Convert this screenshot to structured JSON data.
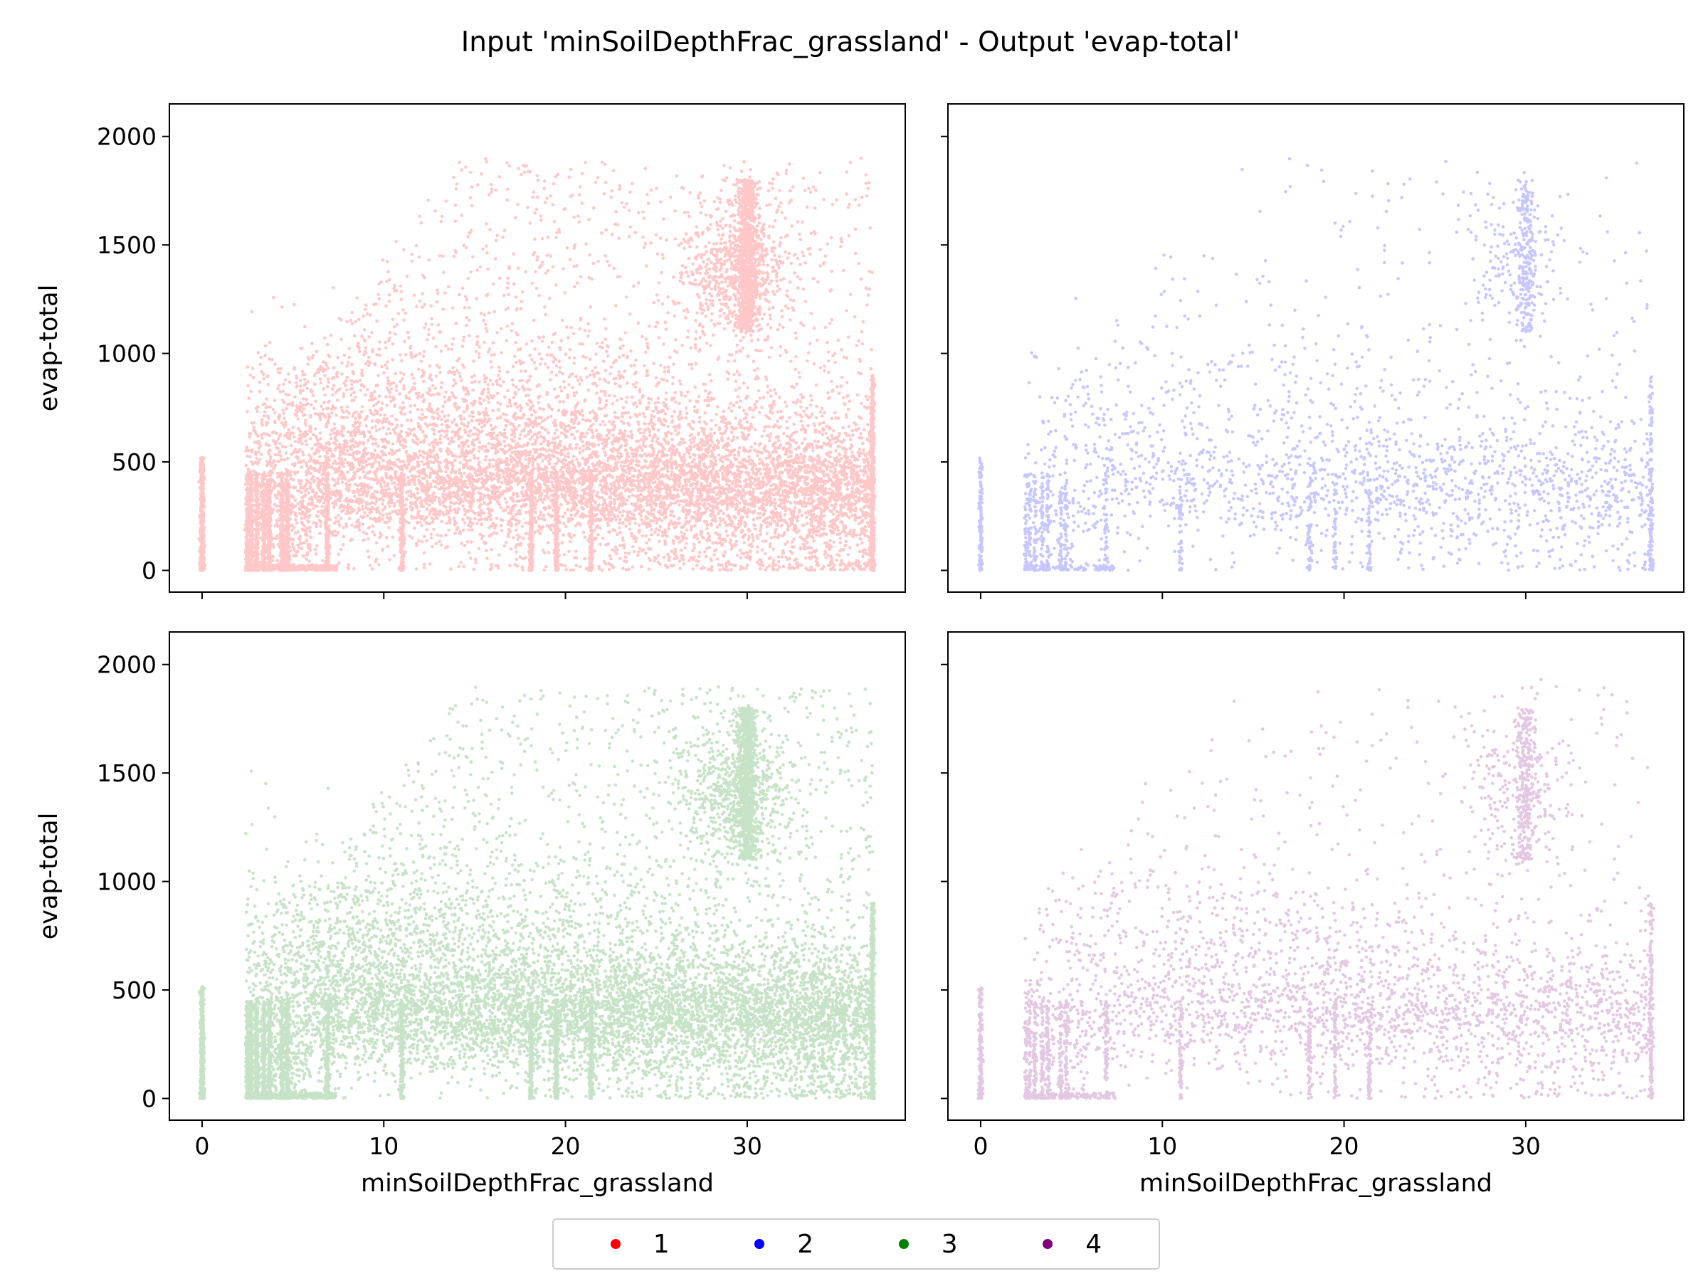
{
  "figure": {
    "title": "Input 'minSoilDepthFrac_grassland' - Output 'evap-total'"
  },
  "legend": {
    "items": [
      {
        "label": "1",
        "color": "#ff0000"
      },
      {
        "label": "2",
        "color": "#0000ff"
      },
      {
        "label": "3",
        "color": "#008000"
      },
      {
        "label": "4",
        "color": "#800080"
      }
    ]
  },
  "chart_data": [
    {
      "type": "scatter",
      "series_label": "1",
      "color": "#ff0000",
      "density": 1.0,
      "xlabel": "",
      "ylabel": "evap-total",
      "xlim": [
        -1.8,
        38.7
      ],
      "ylim": [
        -100,
        2150
      ],
      "xticks": [
        0,
        10,
        20,
        30
      ],
      "yticks": [
        0,
        500,
        1000,
        1500,
        2000
      ],
      "show_xticklabels": false,
      "show_yticklabels": true
    },
    {
      "type": "scatter",
      "series_label": "2",
      "color": "#0000ff",
      "density": 0.22,
      "xlabel": "",
      "ylabel": "",
      "xlim": [
        -1.8,
        38.7
      ],
      "ylim": [
        -100,
        2150
      ],
      "xticks": [
        0,
        10,
        20,
        30
      ],
      "yticks": [
        0,
        500,
        1000,
        1500,
        2000
      ],
      "show_xticklabels": false,
      "show_yticklabels": false
    },
    {
      "type": "scatter",
      "series_label": "3",
      "color": "#008000",
      "density": 1.0,
      "xlabel": "minSoilDepthFrac_grassland",
      "ylabel": "evap-total",
      "xlim": [
        -1.8,
        38.7
      ],
      "ylim": [
        -100,
        2150
      ],
      "xticks": [
        0,
        10,
        20,
        30
      ],
      "yticks": [
        0,
        500,
        1000,
        1500,
        2000
      ],
      "show_xticklabels": true,
      "show_yticklabels": true
    },
    {
      "type": "scatter",
      "series_label": "4",
      "color": "#800080",
      "density": 0.3,
      "xlabel": "minSoilDepthFrac_grassland",
      "ylabel": "",
      "xlim": [
        -1.8,
        38.7
      ],
      "ylim": [
        -100,
        2150
      ],
      "xticks": [
        0,
        10,
        20,
        30
      ],
      "yticks": [
        0,
        500,
        1000,
        1500,
        2000
      ],
      "show_xticklabels": true,
      "show_yticklabels": false
    }
  ]
}
